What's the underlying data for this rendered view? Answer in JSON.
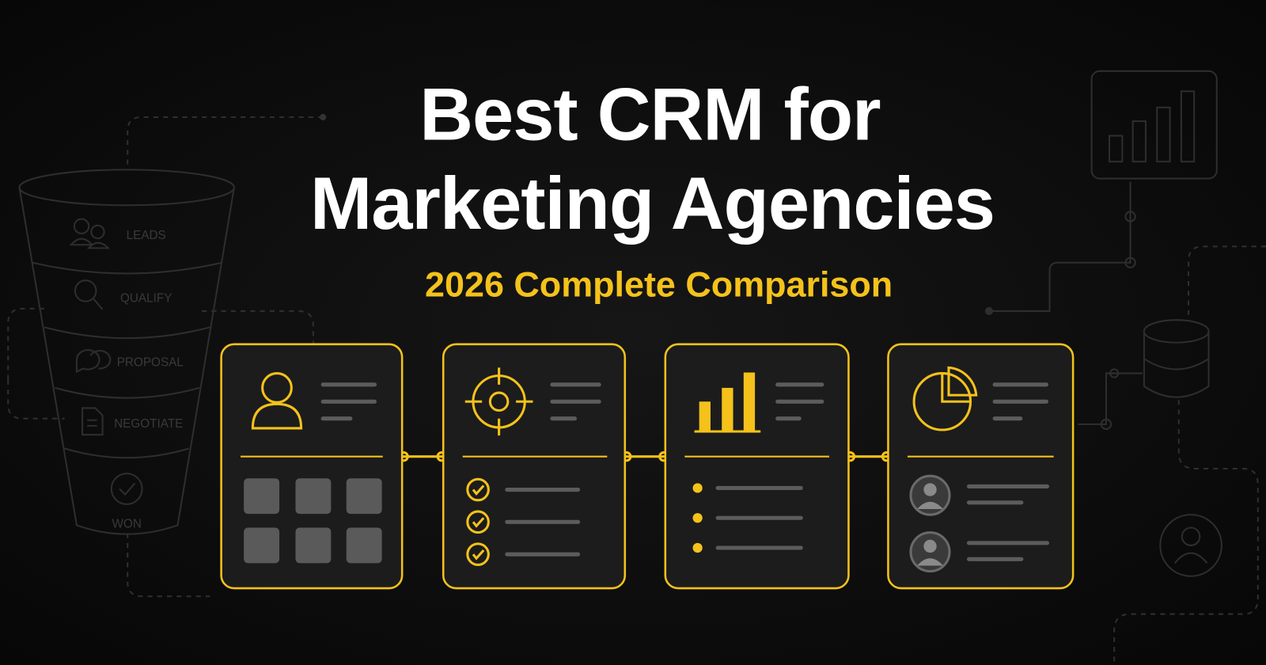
{
  "header": {
    "title_lines": [
      "Best CRM for",
      "Marketing Agencies"
    ],
    "subtitle": "2026 Complete Comparison"
  },
  "funnel": {
    "stages": [
      "LEADS",
      "QUALIFY",
      "PROPOSAL",
      "NEGOTIATE",
      "WON"
    ]
  }
}
